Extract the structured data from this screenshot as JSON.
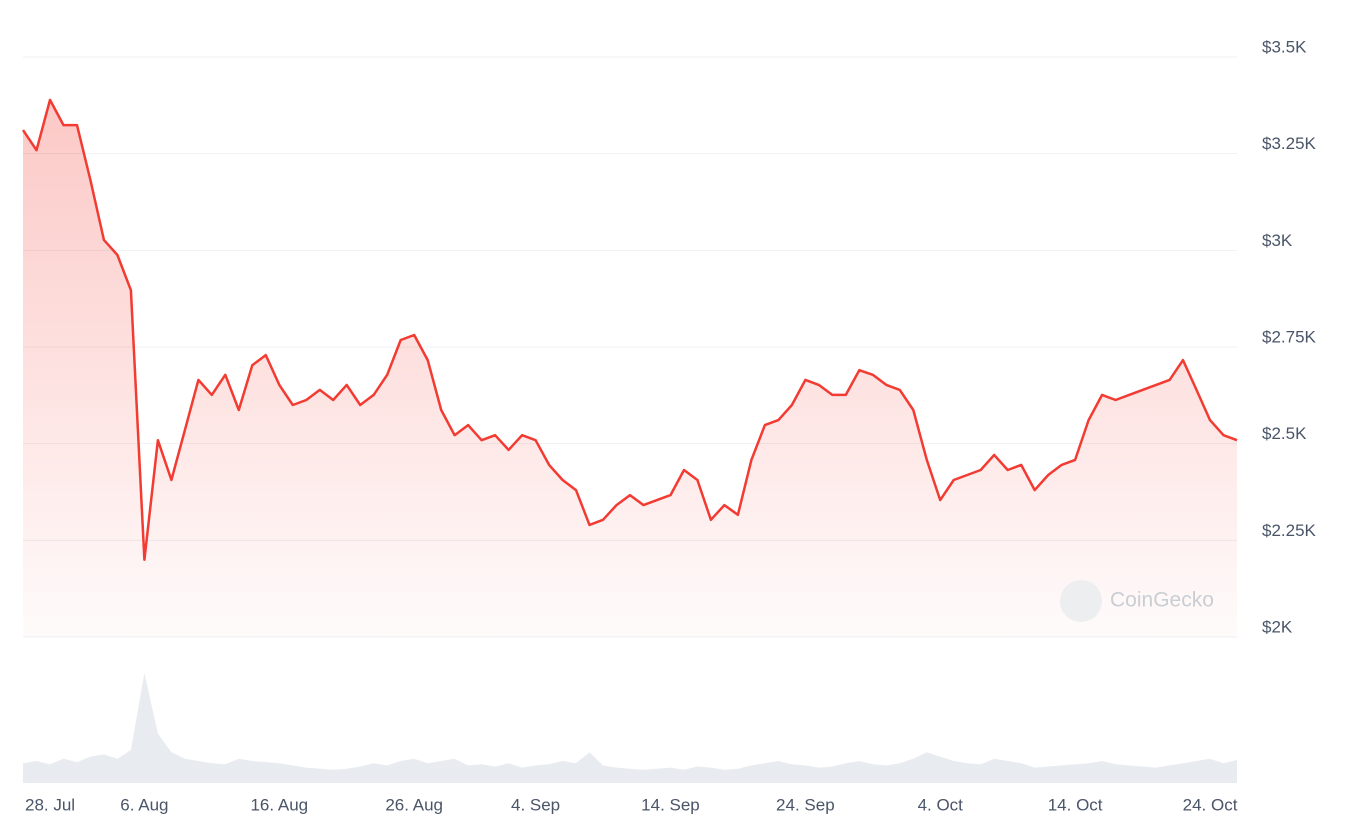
{
  "chart_data": {
    "type": "line",
    "color": "#f23b32",
    "volume_color": "#e8ecf0",
    "watermark": "CoinGecko",
    "categories": [
      "28. Jul",
      null,
      null,
      null,
      null,
      null,
      null,
      null,
      null,
      "6. Aug",
      null,
      null,
      null,
      null,
      null,
      null,
      null,
      null,
      null,
      "16. Aug",
      null,
      null,
      null,
      null,
      null,
      null,
      null,
      null,
      null,
      "26. Aug",
      null,
      null,
      null,
      null,
      null,
      null,
      null,
      null,
      "4. Sep",
      null,
      null,
      null,
      null,
      null,
      null,
      null,
      null,
      null,
      "14. Sep",
      null,
      null,
      null,
      null,
      null,
      null,
      null,
      null,
      null,
      "24. Sep",
      null,
      null,
      null,
      null,
      null,
      null,
      null,
      null,
      null,
      "4. Oct",
      null,
      null,
      null,
      null,
      null,
      null,
      null,
      null,
      null,
      "14. Oct",
      null,
      null,
      null,
      null,
      null,
      null,
      null,
      null,
      null,
      "24. Oct",
      null,
      null
    ],
    "values": [
      3311,
      3259,
      3389,
      3324,
      3324,
      3182,
      3027,
      2988,
      2897,
      2200,
      2509,
      2406,
      2535,
      2665,
      2626,
      2678,
      2587,
      2703,
      2729,
      2652,
      2600,
      2613,
      2639,
      2613,
      2652,
      2600,
      2626,
      2678,
      2768,
      2781,
      2716,
      2587,
      2522,
      2548,
      2509,
      2522,
      2484,
      2522,
      2509,
      2445,
      2406,
      2380,
      2290,
      2303,
      2341,
      2367,
      2341,
      2354,
      2367,
      2432,
      2406,
      2303,
      2341,
      2316,
      2458,
      2548,
      2561,
      2600,
      2665,
      2652,
      2626,
      2626,
      2690,
      2678,
      2652,
      2639,
      2587,
      2458,
      2354,
      2406,
      2419,
      2432,
      2471,
      2432,
      2445,
      2380,
      2419,
      2445,
      2458,
      2561,
      2626,
      2613,
      2626,
      2639,
      2652,
      2665,
      2716,
      2639,
      2561,
      2522,
      2509
    ],
    "volume": [
      18,
      20,
      17,
      22,
      19,
      24,
      26,
      22,
      30,
      100,
      45,
      28,
      22,
      20,
      18,
      17,
      22,
      20,
      19,
      18,
      16,
      14,
      13,
      12,
      13,
      15,
      18,
      16,
      20,
      22,
      18,
      20,
      22,
      16,
      17,
      15,
      18,
      14,
      16,
      17,
      20,
      18,
      28,
      16,
      14,
      13,
      12,
      13,
      14,
      12,
      15,
      14,
      12,
      13,
      16,
      18,
      20,
      17,
      16,
      14,
      15,
      18,
      20,
      17,
      16,
      18,
      22,
      28,
      24,
      20,
      18,
      17,
      22,
      20,
      18,
      14,
      15,
      16,
      17,
      18,
      20,
      17,
      16,
      15,
      14,
      16,
      18,
      20,
      22,
      18,
      21
    ],
    "ylim": [
      2000,
      3500
    ],
    "yticks": [
      {
        "value": 2000,
        "label": "$2K"
      },
      {
        "value": 2250,
        "label": "$2.25K"
      },
      {
        "value": 2500,
        "label": "$2.5K"
      },
      {
        "value": 2750,
        "label": "$2.75K"
      },
      {
        "value": 3000,
        "label": "$3K"
      },
      {
        "value": 3250,
        "label": "$3.25K"
      },
      {
        "value": 3500,
        "label": "$3.5K"
      }
    ],
    "grid": true
  }
}
